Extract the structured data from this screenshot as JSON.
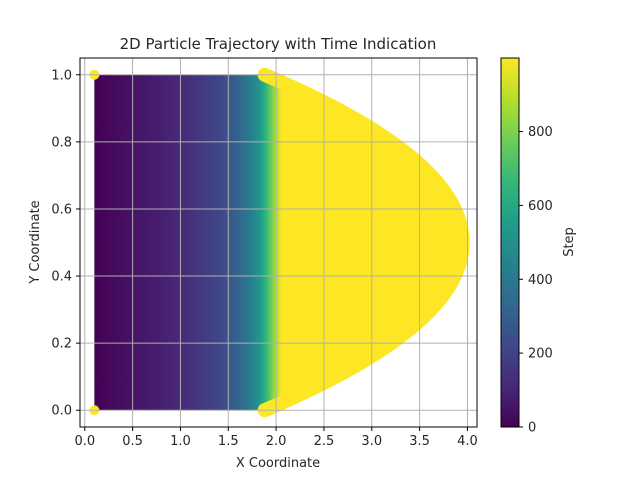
{
  "chart_data": {
    "type": "scatter",
    "title": "2D Particle Trajectory with Time Indication",
    "xlabel": "X Coordinate",
    "ylabel": "Y Coordinate",
    "xlim": [
      -0.05,
      4.1
    ],
    "ylim": [
      -0.05,
      1.05
    ],
    "x_ticks": [
      0.0,
      0.5,
      1.0,
      1.5,
      2.0,
      2.5,
      3.0,
      3.5,
      4.0
    ],
    "x_tick_labels": [
      "0.0",
      "0.5",
      "1.0",
      "1.5",
      "2.0",
      "2.5",
      "3.0",
      "3.5",
      "4.0"
    ],
    "y_ticks": [
      0.0,
      0.2,
      0.4,
      0.6,
      0.8,
      1.0
    ],
    "y_tick_labels": [
      "0.0",
      "0.2",
      "0.4",
      "0.6",
      "0.8",
      "1.0"
    ],
    "grid": true,
    "colormap": "viridis",
    "series": [
      {
        "x_start": 0.1,
        "y_start": [
          0.0,
          1.0
        ],
        "x_turn": 1.88,
        "x_max": 3.95,
        "y_at_x_max": 0.5,
        "steps": 1000,
        "shape": "region filled by trajectories: flat from x=0.1 to x≈1.88, then parabolic boundary reaching x≈3.95 at y=0.5"
      }
    ],
    "colorbar": {
      "label": "Step",
      "min": 0,
      "max": 999,
      "ticks": [
        0,
        200,
        400,
        600,
        800
      ],
      "tick_labels": [
        "0",
        "200",
        "400",
        "600",
        "800"
      ]
    }
  },
  "colors": {
    "viridis": [
      "#440154",
      "#482878",
      "#3e4989",
      "#31688e",
      "#26828e",
      "#1f9e89",
      "#35b779",
      "#6ece58",
      "#b5de2b",
      "#fde725"
    ],
    "grid": "#b0b0b0",
    "axis": "#000000"
  }
}
